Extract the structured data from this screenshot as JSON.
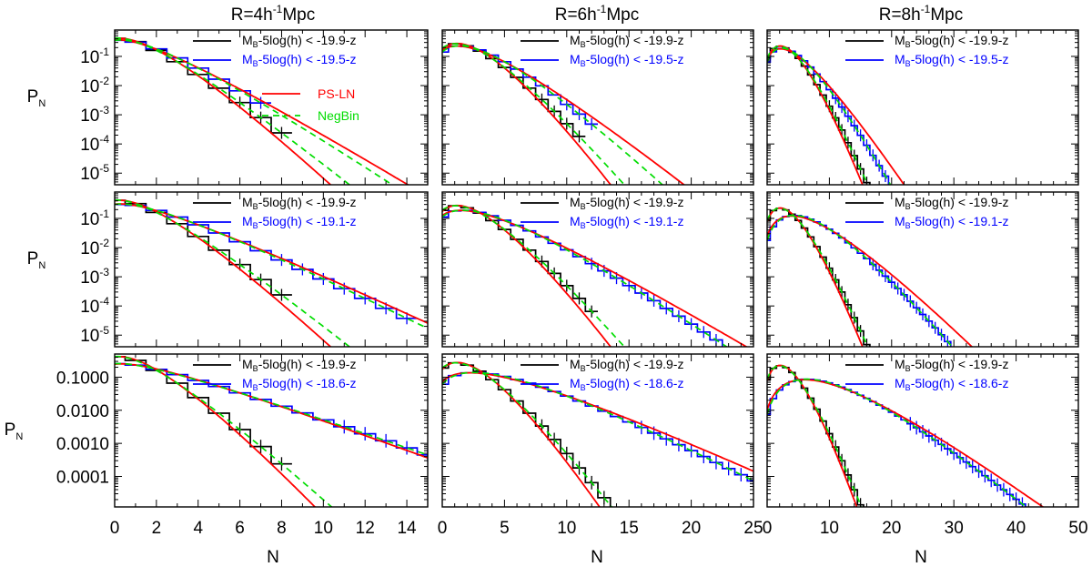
{
  "figure": {
    "column_titles": [
      {
        "base": "R=4h",
        "sup": "-1",
        "tail": "Mpc"
      },
      {
        "base": "R=6h",
        "sup": "-1",
        "tail": "Mpc"
      },
      {
        "base": "R=8h",
        "sup": "-1",
        "tail": "Mpc"
      }
    ],
    "ylabel": {
      "base": "P",
      "sub": "N"
    },
    "xlabel": "N",
    "colors": {
      "black": "#000000",
      "blue": "#0000ff",
      "red": "#ff0000",
      "green": "#00dd00"
    },
    "legend_models": [
      {
        "label": "PS-LN",
        "color": "#ff0000",
        "dashed": false
      },
      {
        "label": "NegBin",
        "color": "#00dd00",
        "dashed": true
      }
    ],
    "row_legends": [
      [
        {
          "pre": "M",
          "sub": "B",
          "post": "-5log(h) < -19.9-z",
          "color": "#000000"
        },
        {
          "pre": "M",
          "sub": "B",
          "post": "-5log(h) < -19.5-z",
          "color": "#0000ff"
        }
      ],
      [
        {
          "pre": "M",
          "sub": "B",
          "post": "-5log(h) < -19.9-z",
          "color": "#000000"
        },
        {
          "pre": "M",
          "sub": "B",
          "post": "-5log(h) < -19.1-z",
          "color": "#0000ff"
        }
      ],
      [
        {
          "pre": "M",
          "sub": "B",
          "post": "-5log(h) < -19.9-z",
          "color": "#000000"
        },
        {
          "pre": "M",
          "sub": "B",
          "post": "-5log(h) < -18.6-z",
          "color": "#0000ff"
        }
      ]
    ],
    "columns_x": [
      {
        "xlim": [
          0,
          15
        ],
        "ticks": [
          0,
          2,
          4,
          6,
          8,
          10,
          12,
          14
        ],
        "minor": 1
      },
      {
        "xlim": [
          0,
          25
        ],
        "ticks": [
          0,
          5,
          10,
          15,
          20,
          25
        ],
        "minor": 1
      },
      {
        "xlim": [
          0,
          50
        ],
        "ticks": [
          0,
          10,
          20,
          30,
          40,
          50
        ],
        "minor": 2
      }
    ],
    "rows_y": [
      {
        "ylim": [
          4e-06,
          0.8
        ],
        "ticks": [
          {
            "v": 0.1,
            "b": "10",
            "e": "-1"
          },
          {
            "v": 0.01,
            "b": "10",
            "e": "-2"
          },
          {
            "v": 0.001,
            "b": "10",
            "e": "-3"
          },
          {
            "v": 0.0001,
            "b": "10",
            "e": "-4"
          },
          {
            "v": 1e-05,
            "b": "10",
            "e": "-5"
          }
        ]
      },
      {
        "ylim": [
          4e-06,
          0.8
        ],
        "ticks": [
          {
            "v": 0.1,
            "b": "10",
            "e": "-1"
          },
          {
            "v": 0.01,
            "b": "10",
            "e": "-2"
          },
          {
            "v": 0.001,
            "b": "10",
            "e": "-3"
          },
          {
            "v": 0.0001,
            "b": "10",
            "e": "-4"
          },
          {
            "v": 1e-05,
            "b": "10",
            "e": "-5"
          }
        ]
      },
      {
        "ylim": [
          1.2e-05,
          0.5
        ],
        "ticks": [
          {
            "v": 0.1,
            "b": "0.1000",
            "e": ""
          },
          {
            "v": 0.01,
            "b": "0.0100",
            "e": ""
          },
          {
            "v": 0.001,
            "b": "0.0010",
            "e": ""
          },
          {
            "v": 0.0001,
            "b": "0.0001",
            "e": ""
          }
        ]
      }
    ]
  },
  "chart_data": [
    {
      "type": "line",
      "row": 0,
      "col": 0,
      "x_range": [
        0,
        15
      ],
      "y_range": [
        4e-06,
        0.8
      ],
      "y_scale": "log",
      "series": [
        {
          "name": "M_B-5log(h) < -19.9-z",
          "color": "#000000",
          "nbar": 1.0,
          "g": 0.3,
          "last": 8
        },
        {
          "name": "M_B-5log(h) < -19.5-z",
          "color": "#0000ff",
          "nbar": 1.25,
          "g": 0.35,
          "last": 7
        },
        {
          "name": "PS-LN",
          "color": "#ff0000",
          "curves": [
            {
              "nbar": 1.0,
              "g": 0.2
            },
            {
              "nbar": 1.25,
              "g": 0.42
            }
          ]
        },
        {
          "name": "NegBin",
          "color": "#00dd00",
          "curves": [
            {
              "nbar": 1.0,
              "g": 0.3
            },
            {
              "nbar": 1.25,
              "g": 0.35
            }
          ]
        }
      ]
    },
    {
      "type": "line",
      "row": 0,
      "col": 1,
      "x_range": [
        0,
        25
      ],
      "y_range": [
        4e-06,
        0.8
      ],
      "y_scale": "log",
      "series": [
        {
          "name": "M_B-5log(h) < -19.9-z",
          "color": "#000000",
          "nbar": 1.95,
          "g": 0.18,
          "last": 11
        },
        {
          "name": "M_B-5log(h) < -19.5-z",
          "color": "#0000ff",
          "nbar": 2.45,
          "g": 0.22,
          "last": 12
        },
        {
          "name": "PS-LN",
          "color": "#ff0000",
          "curves": [
            {
              "nbar": 1.95,
              "g": 0.12
            },
            {
              "nbar": 2.45,
              "g": 0.3
            }
          ]
        },
        {
          "name": "NegBin",
          "color": "#00dd00",
          "curves": [
            {
              "nbar": 1.95,
              "g": 0.18
            },
            {
              "nbar": 2.45,
              "g": 0.22
            }
          ]
        }
      ]
    },
    {
      "type": "line",
      "row": 0,
      "col": 2,
      "x_range": [
        0,
        50
      ],
      "y_range": [
        4e-06,
        0.8
      ],
      "y_scale": "log",
      "series": [
        {
          "name": "M_B-5log(h) < -19.9-z",
          "color": "#000000",
          "nbar": 2.8,
          "g": 0.1,
          "last": 18
        },
        {
          "name": "M_B-5log(h) < -19.5-z",
          "color": "#0000ff",
          "nbar": 3.4,
          "g": 0.15,
          "last": 22
        },
        {
          "name": "PS-LN",
          "color": "#ff0000",
          "curves": [
            {
              "nbar": 2.8,
              "g": 0.07
            },
            {
              "nbar": 3.4,
              "g": 0.22
            }
          ]
        },
        {
          "name": "NegBin",
          "color": "#00dd00",
          "curves": [
            {
              "nbar": 2.8,
              "g": 0.1
            },
            {
              "nbar": 3.4,
              "g": 0.15
            }
          ]
        }
      ]
    },
    {
      "type": "line",
      "row": 1,
      "col": 0,
      "x_range": [
        0,
        15
      ],
      "y_range": [
        4e-06,
        0.8
      ],
      "y_scale": "log",
      "series": [
        {
          "name": "M_B-5log(h) < -19.9-z",
          "color": "#000000",
          "nbar": 1.0,
          "g": 0.3,
          "last": 8
        },
        {
          "name": "M_B-5log(h) < -19.1-z",
          "color": "#0000ff",
          "nbar": 1.6,
          "g": 0.45,
          "last": 14
        },
        {
          "name": "PS-LN",
          "color": "#ff0000",
          "curves": [
            {
              "nbar": 1.0,
              "g": 0.2
            },
            {
              "nbar": 1.6,
              "g": 0.5
            }
          ]
        },
        {
          "name": "NegBin",
          "color": "#00dd00",
          "curves": [
            {
              "nbar": 1.0,
              "g": 0.3
            },
            {
              "nbar": 1.6,
              "g": 0.45
            }
          ]
        }
      ]
    },
    {
      "type": "line",
      "row": 1,
      "col": 1,
      "x_range": [
        0,
        25
      ],
      "y_range": [
        4e-06,
        0.8
      ],
      "y_scale": "log",
      "series": [
        {
          "name": "M_B-5log(h) < -19.9-z",
          "color": "#000000",
          "nbar": 1.95,
          "g": 0.18,
          "last": 12
        },
        {
          "name": "M_B-5log(h) < -19.1-z",
          "color": "#0000ff",
          "nbar": 3.1,
          "g": 0.3,
          "last": 25
        },
        {
          "name": "PS-LN",
          "color": "#ff0000",
          "curves": [
            {
              "nbar": 1.95,
              "g": 0.12
            },
            {
              "nbar": 3.1,
              "g": 0.36
            }
          ]
        },
        {
          "name": "NegBin",
          "color": "#00dd00",
          "curves": [
            {
              "nbar": 1.95,
              "g": 0.18
            },
            {
              "nbar": 3.1,
              "g": 0.3
            }
          ]
        }
      ]
    },
    {
      "type": "line",
      "row": 1,
      "col": 2,
      "x_range": [
        0,
        50
      ],
      "y_range": [
        4e-06,
        0.8
      ],
      "y_scale": "log",
      "series": [
        {
          "name": "M_B-5log(h) < -19.9-z",
          "color": "#000000",
          "nbar": 2.8,
          "g": 0.1,
          "last": 18
        },
        {
          "name": "M_B-5log(h) < -19.1-z",
          "color": "#0000ff",
          "nbar": 5.8,
          "g": 0.17,
          "last": 46
        },
        {
          "name": "PS-LN",
          "color": "#ff0000",
          "curves": [
            {
              "nbar": 2.8,
              "g": 0.07
            },
            {
              "nbar": 5.8,
              "g": 0.23
            }
          ]
        },
        {
          "name": "NegBin",
          "color": "#00dd00",
          "curves": [
            {
              "nbar": 2.8,
              "g": 0.1
            },
            {
              "nbar": 5.8,
              "g": 0.17
            }
          ]
        }
      ]
    },
    {
      "type": "line",
      "row": 2,
      "col": 0,
      "x_range": [
        0,
        15
      ],
      "y_range": [
        1.2e-05,
        0.5
      ],
      "y_scale": "log",
      "series": [
        {
          "name": "M_B-5log(h) < -19.9-z",
          "color": "#000000",
          "nbar": 1.0,
          "g": 0.3,
          "last": 8
        },
        {
          "name": "M_B-5log(h) < -18.6-z",
          "color": "#0000ff",
          "nbar": 2.2,
          "g": 0.65,
          "last": 15
        },
        {
          "name": "PS-LN",
          "color": "#ff0000",
          "curves": [
            {
              "nbar": 1.0,
              "g": 0.2
            },
            {
              "nbar": 2.2,
              "g": 0.6
            }
          ]
        },
        {
          "name": "NegBin",
          "color": "#00dd00",
          "curves": [
            {
              "nbar": 1.0,
              "g": 0.3
            },
            {
              "nbar": 2.2,
              "g": 0.65
            }
          ]
        }
      ]
    },
    {
      "type": "line",
      "row": 2,
      "col": 1,
      "x_range": [
        0,
        25
      ],
      "y_range": [
        1.2e-05,
        0.5
      ],
      "y_scale": "log",
      "series": [
        {
          "name": "M_B-5log(h) < -19.9-z",
          "color": "#000000",
          "nbar": 1.95,
          "g": 0.18,
          "last": 15
        },
        {
          "name": "M_B-5log(h) < -18.6-z",
          "color": "#0000ff",
          "nbar": 4.6,
          "g": 0.33,
          "last": 25
        },
        {
          "name": "PS-LN",
          "color": "#ff0000",
          "curves": [
            {
              "nbar": 1.95,
              "g": 0.12
            },
            {
              "nbar": 4.6,
              "g": 0.4
            }
          ]
        },
        {
          "name": "NegBin",
          "color": "#00dd00",
          "curves": [
            {
              "nbar": 1.95,
              "g": 0.18
            },
            {
              "nbar": 4.6,
              "g": 0.33
            }
          ]
        }
      ]
    },
    {
      "type": "line",
      "row": 2,
      "col": 2,
      "x_range": [
        0,
        50
      ],
      "y_range": [
        1.2e-05,
        0.5
      ],
      "y_scale": "log",
      "series": [
        {
          "name": "M_B-5log(h) < -19.9-z",
          "color": "#000000",
          "nbar": 2.8,
          "g": 0.1,
          "last": 22
        },
        {
          "name": "M_B-5log(h) < -18.6-z",
          "color": "#0000ff",
          "nbar": 8.8,
          "g": 0.22,
          "last": 50
        },
        {
          "name": "PS-LN",
          "color": "#ff0000",
          "curves": [
            {
              "nbar": 2.8,
              "g": 0.07
            },
            {
              "nbar": 8.8,
              "g": 0.26
            }
          ]
        },
        {
          "name": "NegBin",
          "color": "#00dd00",
          "curves": [
            {
              "nbar": 2.8,
              "g": 0.1
            },
            {
              "nbar": 8.8,
              "g": 0.22
            }
          ]
        }
      ]
    }
  ]
}
